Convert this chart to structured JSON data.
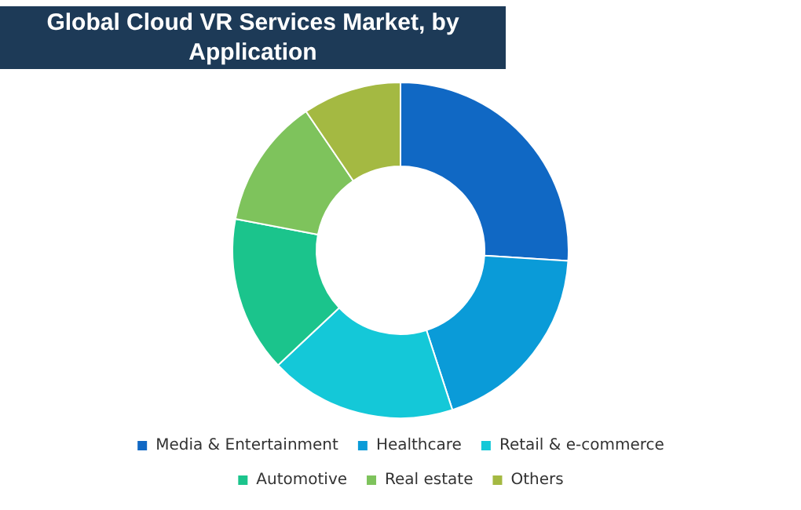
{
  "chart_data": {
    "type": "donut",
    "title": "Global Cloud VR Services Market, by Application",
    "categories": [
      "Media & Entertainment",
      "Healthcare",
      "Retail & e-commerce",
      "Automotive",
      "Real estate",
      "Others"
    ],
    "values": [
      26,
      19,
      18,
      15,
      12.5,
      9.5
    ],
    "colors": [
      "#1068c4",
      "#0a9bd8",
      "#14c8d8",
      "#1bc48c",
      "#7ec35c",
      "#a4b942"
    ],
    "legend": "bottom"
  }
}
